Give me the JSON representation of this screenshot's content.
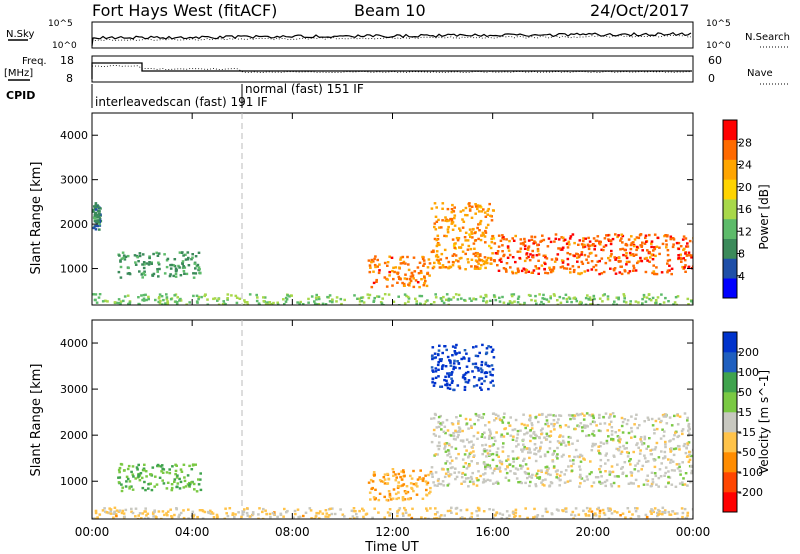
{
  "header": {
    "station": "Fort Hays West (fitACF)",
    "beam": "Beam 10",
    "date": "24/Oct/2017"
  },
  "aux_labels": {
    "nsky": "N.Sky",
    "nsearch": "N.Search",
    "freq_line1": "Freq.",
    "freq_line2": "[MHz]",
    "nave": "Nave",
    "cpid": "CPID",
    "noise_tick_top": "10^5",
    "noise_tick_bottom": "10^0",
    "freq_tick_top": "18",
    "freq_tick_bottom": "8",
    "nave_tick_top": "60",
    "nave_tick_bottom": "0",
    "cpid_scan1": "interleavedscan (fast)  191 IF",
    "cpid_scan2": "normal (fast)  151 IF"
  },
  "colors": {
    "power": [
      "#0000ff",
      "#1f4fa8",
      "#3b8a5a",
      "#5dbb6a",
      "#a8d84a",
      "#ffd400",
      "#ffa500",
      "#ff6a00",
      "#ff0000"
    ],
    "velocity": [
      "#ff0000",
      "#ff4500",
      "#ff8c00",
      "#ffc34a",
      "#c8c8c0",
      "#7ac943",
      "#3fa34d",
      "#1f5fbf",
      "#0033cc"
    ],
    "scatter_fill": "#c8c8c0"
  },
  "chart_data": [
    {
      "type": "heatmap",
      "title": "",
      "xlabel": "Time UT",
      "ylabel": "Slant Range [km]",
      "xlim": [
        "00:00",
        "24:00"
      ],
      "ylim": [
        180,
        4500
      ],
      "x_ticks": [
        "00:00",
        "04:00",
        "08:00",
        "12:00",
        "16:00",
        "20:00",
        "00:00"
      ],
      "y_ticks": [
        "1000",
        "2000",
        "3000",
        "4000"
      ],
      "colorbar_label": "Power [dB]",
      "colorbar_ticks": [
        "4",
        "8",
        "12",
        "16",
        "20",
        "24",
        "28"
      ],
      "colorbar_range": [
        0,
        32
      ],
      "features": [
        {
          "t_start": 0.0,
          "t_end": 0.3,
          "r_low": 1900,
          "r_high": 2500,
          "value": 8
        },
        {
          "t_start": 1.0,
          "t_end": 4.3,
          "r_low": 800,
          "r_high": 1400,
          "value": 10
        },
        {
          "t_start": 0.0,
          "t_end": 24.0,
          "r_low": 200,
          "r_high": 450,
          "value": 14
        },
        {
          "t_start": 11.0,
          "t_end": 13.5,
          "r_low": 600,
          "r_high": 1300,
          "value": 26
        },
        {
          "t_start": 13.5,
          "t_end": 16.0,
          "r_low": 1000,
          "r_high": 2500,
          "value": 24
        },
        {
          "t_start": 16.0,
          "t_end": 24.0,
          "r_low": 900,
          "r_high": 1800,
          "value": 27
        }
      ]
    },
    {
      "type": "heatmap",
      "title": "",
      "xlabel": "Time UT",
      "ylabel": "Slant Range [km]",
      "xlim": [
        "00:00",
        "24:00"
      ],
      "ylim": [
        180,
        4500
      ],
      "x_ticks": [
        "00:00",
        "04:00",
        "08:00",
        "12:00",
        "16:00",
        "20:00",
        "00:00"
      ],
      "y_ticks": [
        "1000",
        "2000",
        "3000",
        "4000"
      ],
      "colorbar_label": "Velocity [m s^-1]",
      "colorbar_ticks": [
        "200",
        "100",
        "50",
        "15",
        "-15",
        "-50",
        "-100",
        "-200"
      ],
      "colorbar_range": [
        -250,
        250
      ],
      "features": [
        {
          "t_start": 1.0,
          "t_end": 4.3,
          "r_low": 800,
          "r_high": 1400,
          "value": 80
        },
        {
          "t_start": 0.0,
          "t_end": 24.0,
          "r_low": 200,
          "r_high": 450,
          "value": -40
        },
        {
          "t_start": 11.0,
          "t_end": 13.5,
          "r_low": 600,
          "r_high": 1300,
          "value": -80
        },
        {
          "t_start": 13.5,
          "t_end": 24.0,
          "r_low": 900,
          "r_high": 2500,
          "value": 0
        },
        {
          "t_start": 13.5,
          "t_end": 16.0,
          "r_low": 3000,
          "r_high": 4000,
          "value": 220
        }
      ]
    }
  ]
}
